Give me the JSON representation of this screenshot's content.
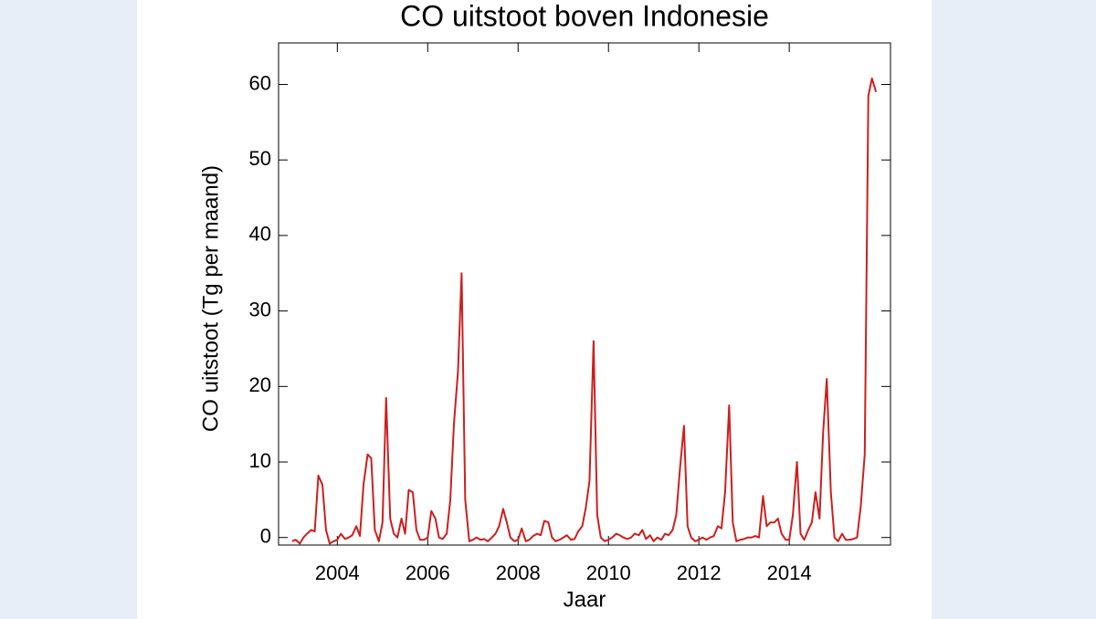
{
  "chart_data": {
    "type": "line",
    "title": "CO uitstoot boven Indonesie",
    "xlabel": "Jaar",
    "ylabel": "CO uitstoot (Tg per maand)",
    "color": "#cc1f1f",
    "xlim": [
      2002.7,
      2016.24
    ],
    "ylim": [
      -1,
      65.5
    ],
    "xticks": [
      2004,
      2006,
      2008,
      2010,
      2012,
      2014
    ],
    "yticks": [
      0,
      10,
      20,
      30,
      40,
      50,
      60
    ],
    "x": [
      2003.0,
      2003.08,
      2003.17,
      2003.25,
      2003.33,
      2003.42,
      2003.5,
      2003.58,
      2003.67,
      2003.75,
      2003.83,
      2003.92,
      2004.0,
      2004.08,
      2004.17,
      2004.25,
      2004.33,
      2004.42,
      2004.5,
      2004.58,
      2004.67,
      2004.75,
      2004.83,
      2004.92,
      2005.0,
      2005.08,
      2005.17,
      2005.25,
      2005.33,
      2005.42,
      2005.5,
      2005.58,
      2005.67,
      2005.75,
      2005.83,
      2005.92,
      2006.0,
      2006.08,
      2006.17,
      2006.25,
      2006.33,
      2006.42,
      2006.5,
      2006.58,
      2006.67,
      2006.75,
      2006.83,
      2006.92,
      2007.0,
      2007.08,
      2007.17,
      2007.25,
      2007.33,
      2007.42,
      2007.5,
      2007.58,
      2007.67,
      2007.75,
      2007.83,
      2007.92,
      2008.0,
      2008.08,
      2008.17,
      2008.25,
      2008.33,
      2008.42,
      2008.5,
      2008.58,
      2008.67,
      2008.75,
      2008.83,
      2008.92,
      2009.0,
      2009.08,
      2009.17,
      2009.25,
      2009.33,
      2009.42,
      2009.5,
      2009.58,
      2009.67,
      2009.75,
      2009.83,
      2009.92,
      2010.0,
      2010.08,
      2010.17,
      2010.25,
      2010.33,
      2010.42,
      2010.5,
      2010.58,
      2010.67,
      2010.75,
      2010.83,
      2010.92,
      2011.0,
      2011.08,
      2011.17,
      2011.25,
      2011.33,
      2011.42,
      2011.5,
      2011.58,
      2011.67,
      2011.75,
      2011.83,
      2011.92,
      2012.0,
      2012.08,
      2012.17,
      2012.25,
      2012.33,
      2012.42,
      2012.5,
      2012.58,
      2012.67,
      2012.75,
      2012.83,
      2012.92,
      2013.0,
      2013.08,
      2013.17,
      2013.25,
      2013.33,
      2013.42,
      2013.5,
      2013.58,
      2013.67,
      2013.75,
      2013.83,
      2013.92,
      2014.0,
      2014.08,
      2014.17,
      2014.25,
      2014.33,
      2014.42,
      2014.5,
      2014.58,
      2014.67,
      2014.75,
      2014.83,
      2014.92,
      2015.0,
      2015.08,
      2015.17,
      2015.25,
      2015.33,
      2015.42,
      2015.5,
      2015.58,
      2015.67,
      2015.75,
      2015.83,
      2015.92
    ],
    "values": [
      -0.5,
      -0.3,
      -0.8,
      0,
      0.5,
      1,
      0.8,
      8.2,
      7,
      1,
      -0.8,
      -0.5,
      -0.3,
      0.5,
      -0.2,
      0,
      0.3,
      1.5,
      0.2,
      7,
      11,
      10.5,
      1,
      -0.5,
      2,
      18.5,
      2.5,
      0.5,
      0,
      2.5,
      0.5,
      6.3,
      6,
      1,
      -0.3,
      -0.3,
      0,
      3.5,
      2.5,
      0,
      -0.2,
      0.5,
      5,
      15,
      22,
      35,
      5,
      -0.5,
      -0.3,
      0,
      -0.3,
      -0.2,
      -0.5,
      0,
      0.5,
      1.5,
      3.8,
      2,
      0,
      -0.5,
      -0.3,
      1.2,
      -0.5,
      -0.3,
      0.2,
      0.5,
      0.3,
      2.2,
      2,
      0,
      -0.5,
      -0.3,
      0,
      0.3,
      -0.3,
      -0.2,
      0.8,
      1.5,
      4,
      7.5,
      26,
      3,
      0,
      -0.5,
      -0.3,
      0,
      0.5,
      0.3,
      0,
      -0.2,
      0,
      0.5,
      0.3,
      1,
      -0.2,
      0.3,
      -0.5,
      0,
      -0.3,
      0.5,
      0.3,
      1,
      3,
      9,
      14.8,
      1.5,
      0,
      -0.5,
      -0.3,
      0,
      -0.3,
      0,
      0.2,
      1.5,
      1.2,
      6,
      17.5,
      2,
      -0.5,
      -0.3,
      -0.2,
      0,
      0,
      0.2,
      0,
      5.5,
      1.5,
      2,
      2,
      2.5,
      0.5,
      -0.3,
      -0.3,
      3,
      10,
      0.5,
      -0.3,
      1,
      2,
      6,
      2.5,
      14,
      21,
      6,
      0,
      -0.5,
      0.5,
      -0.3,
      -0.3,
      -0.2,
      0,
      4,
      11,
      58.5,
      60.8,
      59
    ]
  }
}
